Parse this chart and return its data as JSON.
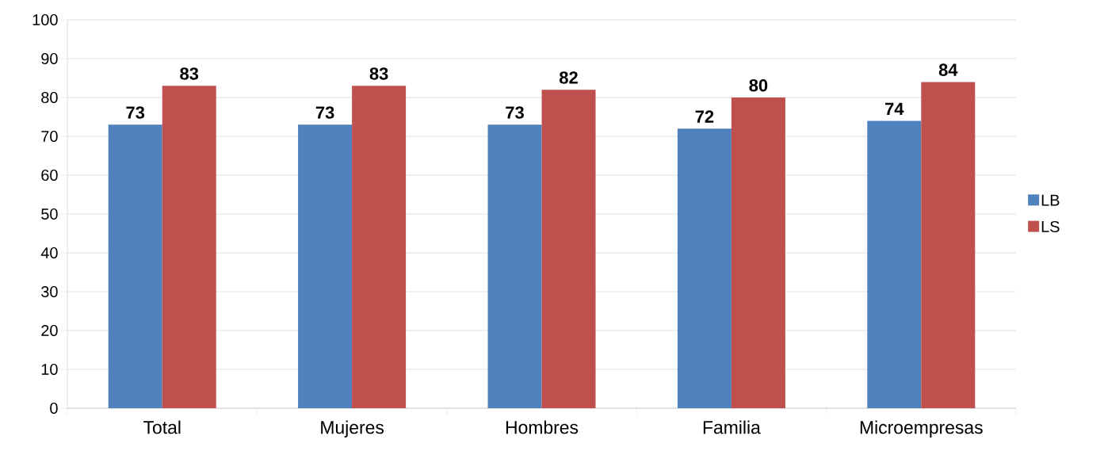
{
  "chart_data": {
    "type": "bar",
    "categories": [
      "Total",
      "Mujeres",
      "Hombres",
      "Familia",
      "Microempresas"
    ],
    "series": [
      {
        "name": "LB",
        "color": "#4f81bd",
        "values": [
          73,
          73,
          73,
          72,
          74
        ]
      },
      {
        "name": "LS",
        "color": "#c0504d",
        "values": [
          83,
          83,
          82,
          80,
          84
        ]
      }
    ],
    "ylim": [
      0,
      100
    ],
    "yticks": [
      0,
      10,
      20,
      30,
      40,
      50,
      60,
      70,
      80,
      90,
      100
    ],
    "grid": "y",
    "legend": "right",
    "data_labels": true
  }
}
